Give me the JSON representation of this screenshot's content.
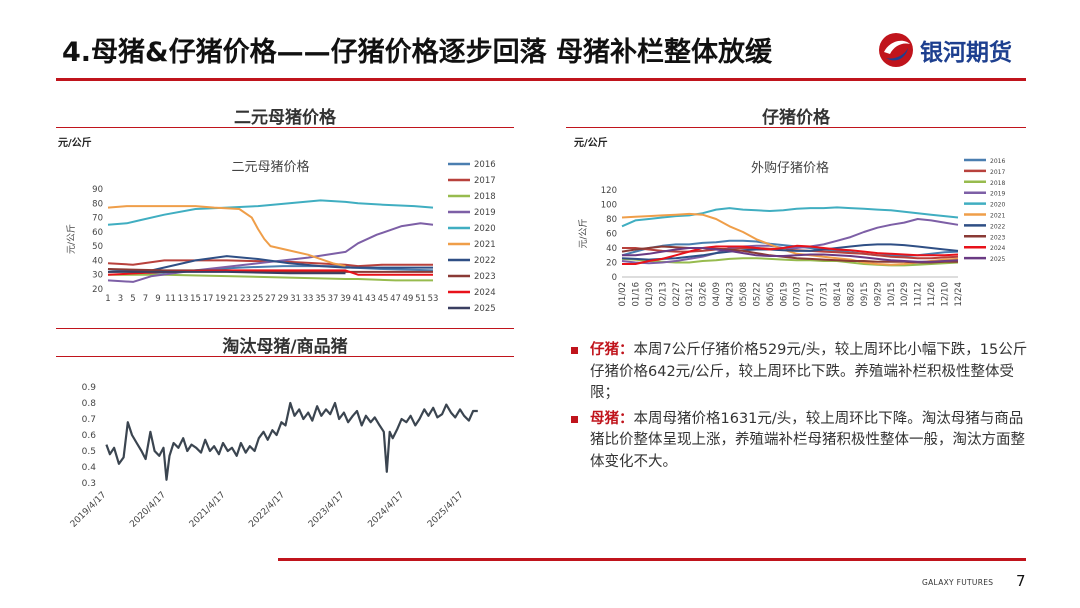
{
  "header": {
    "title": "4.母猪&仔猪价格——仔猪价格逐步回落 母猪补栏整体放缓",
    "logo_text": "银河期货",
    "brand_color": "#c0141c"
  },
  "panels": {
    "sow": {
      "title": "二元母猪价格",
      "unit": "元/公斤"
    },
    "piglet": {
      "title": "仔猪价格",
      "unit": "元/公斤"
    },
    "cull": {
      "title": "淘汰母猪/商品猪"
    }
  },
  "bullets": [
    {
      "label": "仔猪：",
      "text": "本周7公斤仔猪价格529元/头，较上周环比小幅下跌，15公斤仔猪价格642元/公斤，较上周环比下跌。养殖端补栏积极性整体受限；"
    },
    {
      "label": "母猪：",
      "text": "本周母猪价格1631元/头，较上周环比下降。淘汰母猪与商品猪比价整体呈现上涨，养殖端补栏母猪积极性整体一般，淘汰方面整体变化不大。"
    }
  ],
  "footer": {
    "brand": "GALAXY FUTURES",
    "page": "7"
  },
  "chart_data": [
    {
      "type": "line",
      "title": "二元母猪价格",
      "ylabel": "元/公斤",
      "ylim": [
        20,
        90
      ],
      "yticks": [
        20,
        30,
        40,
        50,
        60,
        70,
        80,
        90
      ],
      "xlim": [
        1,
        53
      ],
      "xticks": [
        "1",
        "3",
        "5",
        "7",
        "9",
        "11",
        "13",
        "15",
        "17",
        "19",
        "21",
        "23",
        "25",
        "27",
        "29",
        "31",
        "33",
        "35",
        "37",
        "39",
        "41",
        "43",
        "45",
        "47",
        "49",
        "51",
        "53"
      ],
      "legend_position": "right",
      "series": [
        {
          "name": "2016",
          "color": "#4a7eb0",
          "x": [
            1,
            8,
            15,
            22,
            29,
            36,
            39,
            40,
            45,
            53
          ],
          "values": [
            34,
            31,
            33,
            35,
            36,
            36,
            36,
            35,
            34,
            33
          ]
        },
        {
          "name": "2017",
          "color": "#b8413c",
          "x": [
            1,
            5,
            10,
            20,
            30,
            39,
            41,
            45,
            53
          ],
          "values": [
            38,
            37,
            40,
            40,
            39,
            37,
            36,
            37,
            37
          ]
        },
        {
          "name": "2018",
          "color": "#97bb4e",
          "x": [
            1,
            10,
            20,
            30,
            39,
            41,
            47,
            53
          ],
          "values": [
            30,
            30,
            29,
            28,
            27,
            27,
            26,
            26
          ]
        },
        {
          "name": "2019",
          "color": "#7d5fa6",
          "x": [
            1,
            5,
            8,
            15,
            25,
            33,
            39,
            41,
            44,
            48,
            51,
            53
          ],
          "values": [
            26,
            25,
            29,
            33,
            38,
            42,
            46,
            52,
            58,
            64,
            66,
            65
          ]
        },
        {
          "name": "2020",
          "color": "#40aec1",
          "x": [
            1,
            4,
            6,
            10,
            15,
            20,
            25,
            30,
            35,
            39,
            41,
            45,
            50,
            53
          ],
          "values": [
            65,
            66,
            68,
            72,
            76,
            77,
            78,
            80,
            82,
            81,
            80,
            79,
            78,
            77
          ]
        },
        {
          "name": "2021",
          "color": "#ef9e49",
          "x": [
            1,
            4,
            10,
            15,
            18,
            22,
            24,
            25,
            26,
            27,
            29,
            33,
            37,
            39
          ],
          "values": [
            77,
            78,
            78,
            78,
            77,
            76,
            70,
            62,
            55,
            50,
            48,
            44,
            38,
            36
          ]
        },
        {
          "name": "2022",
          "color": "#2f4f85",
          "x": [
            1,
            8,
            15,
            20,
            25,
            30,
            35,
            39,
            41,
            53
          ],
          "values": [
            32,
            33,
            40,
            43,
            41,
            38,
            36,
            35,
            35,
            35
          ]
        },
        {
          "name": "2023",
          "color": "#8a3a35",
          "x": [
            1,
            10,
            20,
            30,
            39,
            41,
            53
          ],
          "values": [
            34,
            33,
            33,
            32,
            32,
            32,
            32
          ]
        },
        {
          "name": "2024",
          "color": "#e8121a",
          "x": [
            1,
            10,
            20,
            30,
            39,
            41,
            53
          ],
          "values": [
            30,
            32,
            33,
            33,
            33,
            30,
            30
          ]
        },
        {
          "name": "2025",
          "color": "#3a3f61",
          "x": [
            1,
            10,
            20,
            30,
            39
          ],
          "values": [
            32,
            32,
            32,
            31,
            31
          ]
        }
      ]
    },
    {
      "type": "line",
      "title": "外购仔猪价格",
      "ylabel": "元/公斤",
      "ylim": [
        0,
        120
      ],
      "yticks": [
        0,
        20,
        40,
        60,
        80,
        100,
        120
      ],
      "categories": [
        "01/02",
        "01/16",
        "01/30",
        "02/13",
        "02/27",
        "03/12",
        "03/26",
        "04/09",
        "04/23",
        "05/08",
        "05/22",
        "06/05",
        "06/19",
        "07/03",
        "07/17",
        "07/31",
        "08/14",
        "08/28",
        "09/15",
        "09/29",
        "10/15",
        "10/29",
        "11/12",
        "11/26",
        "12/10",
        "12/24"
      ],
      "legend_position": "right",
      "series": [
        {
          "name": "2016",
          "color": "#4a7eb0",
          "values": [
            30,
            35,
            40,
            43,
            45,
            45,
            47,
            48,
            50,
            50,
            49,
            46,
            44,
            42,
            40,
            38,
            36,
            34,
            32,
            30,
            30,
            29,
            30,
            32,
            34,
            35
          ]
        },
        {
          "name": "2017",
          "color": "#b8413c",
          "values": [
            40,
            40,
            38,
            36,
            35,
            35,
            36,
            38,
            39,
            40,
            40,
            39,
            38,
            37,
            36,
            35,
            34,
            33,
            32,
            30,
            28,
            27,
            26,
            26,
            27,
            28
          ]
        },
        {
          "name": "2018",
          "color": "#97bb4e",
          "values": [
            25,
            24,
            22,
            21,
            20,
            20,
            22,
            23,
            25,
            26,
            26,
            25,
            24,
            23,
            23,
            22,
            22,
            20,
            18,
            17,
            16,
            16,
            17,
            18,
            19,
            20
          ]
        },
        {
          "name": "2019",
          "color": "#7d5fa6",
          "values": [
            22,
            20,
            19,
            20,
            22,
            25,
            28,
            33,
            40,
            42,
            43,
            43,
            40,
            40,
            42,
            45,
            50,
            55,
            62,
            68,
            72,
            75,
            80,
            78,
            75,
            72
          ]
        },
        {
          "name": "2020",
          "color": "#40aec1",
          "values": [
            70,
            78,
            80,
            82,
            84,
            85,
            88,
            93,
            95,
            93,
            92,
            91,
            92,
            94,
            95,
            95,
            96,
            95,
            94,
            93,
            92,
            90,
            88,
            86,
            84,
            82
          ]
        },
        {
          "name": "2021",
          "color": "#ef9e49",
          "values": [
            82,
            83,
            84,
            85,
            86,
            87,
            86,
            80,
            70,
            62,
            52,
            45,
            38,
            32,
            30,
            28,
            26,
            24,
            20,
            18,
            17,
            18,
            20,
            22,
            24,
            25
          ]
        },
        {
          "name": "2022",
          "color": "#2f4f85",
          "values": [
            26,
            25,
            24,
            25,
            26,
            28,
            30,
            33,
            35,
            37,
            38,
            38,
            37,
            36,
            36,
            38,
            40,
            42,
            44,
            45,
            45,
            44,
            42,
            40,
            38,
            36
          ]
        },
        {
          "name": "2023",
          "color": "#8a3a35",
          "values": [
            35,
            38,
            40,
            42,
            41,
            40,
            40,
            39,
            38,
            36,
            33,
            30,
            28,
            26,
            25,
            24,
            23,
            22,
            22,
            21,
            21,
            21,
            20,
            20,
            21,
            21
          ]
        },
        {
          "name": "2024",
          "color": "#e8121a",
          "values": [
            18,
            18,
            22,
            25,
            30,
            35,
            40,
            42,
            42,
            42,
            40,
            38,
            40,
            43,
            42,
            40,
            38,
            37,
            35,
            33,
            32,
            31,
            30,
            30,
            30,
            31
          ]
        },
        {
          "name": "2025",
          "color": "#6a3a83",
          "values": [
            30,
            30,
            32,
            35,
            38,
            40,
            40,
            38,
            36,
            33,
            30,
            29,
            29,
            30,
            31,
            31,
            30,
            29,
            27,
            25,
            23,
            22,
            21,
            21,
            22,
            23
          ]
        }
      ]
    },
    {
      "type": "line",
      "title": "淘汰母猪/商品猪",
      "ylim": [
        0.3,
        0.9
      ],
      "yticks": [
        0.3,
        0.4,
        0.5,
        0.6,
        0.7,
        0.8,
        0.9
      ],
      "xticks": [
        "2019/4/17",
        "2020/4/17",
        "2021/4/17",
        "2022/4/17",
        "2023/4/17",
        "2024/4/17",
        "2025/4/17"
      ],
      "series": [
        {
          "name": "",
          "color": "#3b4550",
          "x": [
            2019.29,
            2019.35,
            2019.42,
            2019.5,
            2019.58,
            2019.65,
            2019.72,
            2019.8,
            2019.88,
            2019.95,
            2020.03,
            2020.1,
            2020.18,
            2020.25,
            2020.3,
            2020.35,
            2020.42,
            2020.5,
            2020.58,
            2020.65,
            2020.72,
            2020.8,
            2020.88,
            2020.95,
            2021.03,
            2021.1,
            2021.18,
            2021.25,
            2021.33,
            2021.4,
            2021.48,
            2021.55,
            2021.63,
            2021.7,
            2021.78,
            2021.85,
            2021.93,
            2022.0,
            2022.08,
            2022.15,
            2022.23,
            2022.3,
            2022.38,
            2022.45,
            2022.53,
            2022.6,
            2022.68,
            2022.75,
            2022.83,
            2022.9,
            2022.98,
            2023.05,
            2023.13,
            2023.2,
            2023.28,
            2023.35,
            2023.43,
            2023.5,
            2023.58,
            2023.65,
            2023.73,
            2023.8,
            2023.88,
            2023.95,
            2024.0,
            2024.05,
            2024.1,
            2024.18,
            2024.25,
            2024.33,
            2024.4,
            2024.48,
            2024.55,
            2024.63,
            2024.7,
            2024.78,
            2024.85,
            2024.93,
            2025.0,
            2025.08,
            2025.15,
            2025.23,
            2025.3,
            2025.38,
            2025.45,
            2025.53
          ],
          "values": [
            0.54,
            0.48,
            0.52,
            0.42,
            0.46,
            0.68,
            0.6,
            0.55,
            0.5,
            0.45,
            0.62,
            0.5,
            0.47,
            0.52,
            0.32,
            0.47,
            0.55,
            0.52,
            0.58,
            0.5,
            0.54,
            0.52,
            0.49,
            0.57,
            0.5,
            0.53,
            0.48,
            0.55,
            0.5,
            0.52,
            0.47,
            0.55,
            0.49,
            0.53,
            0.5,
            0.58,
            0.62,
            0.57,
            0.63,
            0.6,
            0.68,
            0.66,
            0.8,
            0.72,
            0.76,
            0.7,
            0.74,
            0.69,
            0.78,
            0.72,
            0.76,
            0.73,
            0.8,
            0.7,
            0.74,
            0.68,
            0.72,
            0.75,
            0.66,
            0.72,
            0.68,
            0.71,
            0.66,
            0.62,
            0.37,
            0.62,
            0.58,
            0.64,
            0.7,
            0.68,
            0.72,
            0.66,
            0.7,
            0.76,
            0.72,
            0.77,
            0.71,
            0.73,
            0.79,
            0.74,
            0.71,
            0.76,
            0.72,
            0.69,
            0.75,
            0.75
          ]
        }
      ]
    }
  ]
}
